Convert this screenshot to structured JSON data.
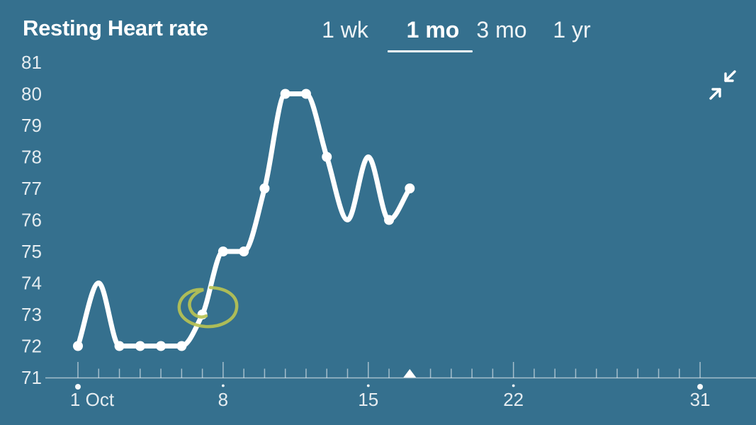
{
  "header": {
    "title": "Resting Heart rate"
  },
  "tabs": {
    "items": [
      {
        "label": "1 wk",
        "selected": false
      },
      {
        "label": "1 mo",
        "selected": true
      },
      {
        "label": "3 mo",
        "selected": false
      },
      {
        "label": "1 yr",
        "selected": false
      }
    ]
  },
  "icons": {
    "collapse": "collapse-diagonal-arrows"
  },
  "colors": {
    "background": "#35708e",
    "line": "#ffffff",
    "axis": "rgba(255,255,255,0.55)",
    "label": "rgba(255,255,255,0.87)",
    "marker": "#ffffff",
    "annotation": "#b7c254"
  },
  "chart_data": {
    "type": "line",
    "title": "Resting Heart rate",
    "selected_period": "1 mo",
    "x_unit": "day of October",
    "y_unit": "bpm",
    "ylim": [
      71,
      81
    ],
    "yticks": [
      81,
      80,
      79,
      78,
      77,
      76,
      75,
      74,
      73,
      72,
      71
    ],
    "xlim": [
      1,
      31
    ],
    "days": [
      1,
      2,
      3,
      4,
      5,
      6,
      7,
      8,
      9,
      10,
      11,
      12,
      13,
      14,
      15,
      16,
      17
    ],
    "values": [
      72,
      74,
      72,
      72,
      72,
      72,
      73,
      75,
      75,
      77,
      80,
      80,
      78,
      76,
      78,
      76,
      77
    ],
    "marker_days": [
      1,
      3,
      4,
      5,
      6,
      7,
      8,
      9,
      10,
      11,
      12,
      13,
      16,
      17
    ],
    "xticks": [
      {
        "day": 1,
        "label": "1 Oct",
        "emphasis": "major"
      },
      {
        "day": 8,
        "label": "8",
        "emphasis": "minor"
      },
      {
        "day": 15,
        "label": "15",
        "emphasis": "minor"
      },
      {
        "day": 22,
        "label": "22",
        "emphasis": "minor"
      },
      {
        "day": 31,
        "label": "31",
        "emphasis": "major"
      }
    ],
    "current_day_marker": 17,
    "annotation": {
      "shape": "hand-drawn-circle",
      "day": 7,
      "value": 73
    }
  }
}
